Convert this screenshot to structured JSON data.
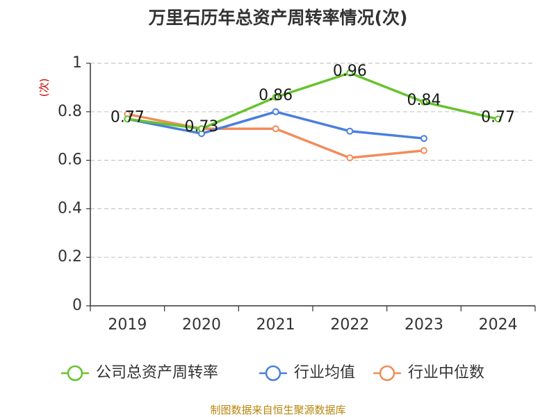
{
  "chart_data": {
    "type": "line",
    "title": "万里石历年总资产周转率情况(次)",
    "ylabel": "(次)",
    "xlabel": "",
    "categories": [
      "2019",
      "2020",
      "2021",
      "2022",
      "2023",
      "2024"
    ],
    "ylim": [
      0,
      1
    ],
    "yticks": [
      "0",
      "0.2",
      "0.4",
      "0.6",
      "0.8",
      "1"
    ],
    "grid": true,
    "legend_position": "bottom",
    "series": [
      {
        "name": "公司总资产周转率",
        "color": "#66c32e",
        "values": [
          0.77,
          0.73,
          0.86,
          0.96,
          0.84,
          0.77
        ],
        "labels": [
          "0.77",
          "0.73",
          "0.86",
          "0.96",
          "0.84",
          "0.77"
        ]
      },
      {
        "name": "行业均值",
        "color": "#4a7fdc",
        "values": [
          0.77,
          0.71,
          0.8,
          0.72,
          0.69,
          null
        ],
        "labels": []
      },
      {
        "name": "行业中位数",
        "color": "#f28c5a",
        "values": [
          0.79,
          0.73,
          0.73,
          0.61,
          0.64,
          null
        ],
        "labels": []
      }
    ],
    "source": "制图数据来自恒生聚源数据库"
  }
}
